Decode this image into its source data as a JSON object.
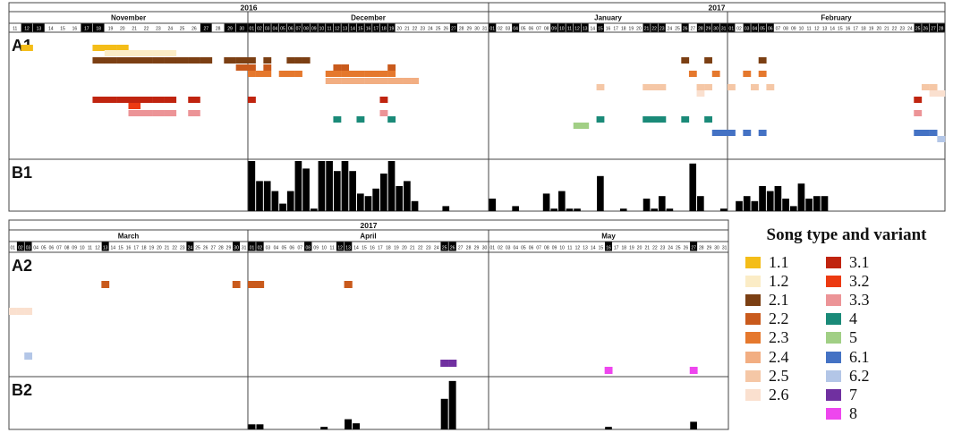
{
  "colors": {
    "1.1": "#f4bd18",
    "1.2": "#fbecc6",
    "2.1": "#7b3f13",
    "2.2": "#c95a1c",
    "2.3": "#e5782d",
    "2.4": "#f2ae82",
    "2.5": "#f5c7a6",
    "2.6": "#fae0cf",
    "3.1": "#c0240f",
    "3.2": "#ec3a12",
    "3.3": "#ec9497",
    "4": "#1a8a78",
    "5": "#a1cf85",
    "6.1": "#4472c4",
    "6.2": "#b3c6e7",
    "7": "#7030a0",
    "8": "#ee46ee"
  },
  "legend": {
    "title": "Song type and variant",
    "items": [
      "1.1",
      "1.2",
      "2.1",
      "2.2",
      "2.3",
      "2.4",
      "2.5",
      "2.6",
      "3.1",
      "3.2",
      "3.3",
      "4",
      "5",
      "6.1",
      "6.2",
      "7",
      "8"
    ]
  },
  "chart_data": [
    {
      "type": "heatmap",
      "panel_label": "A1",
      "years": [
        {
          "label": "2016"
        },
        {
          "label": "2017"
        }
      ],
      "months": [
        {
          "name": "November",
          "days": 30,
          "first_day": 11,
          "highlighted_days": [
            12,
            13,
            17,
            18,
            27,
            29,
            30
          ]
        },
        {
          "name": "December",
          "days": 31,
          "highlighted_days": [
            1,
            2,
            3,
            4,
            5,
            6,
            7,
            8,
            9,
            10,
            11,
            12,
            13,
            14,
            15,
            16,
            17,
            18,
            19,
            27
          ]
        },
        {
          "name": "January",
          "days": 31,
          "highlighted_days": [
            1,
            4,
            9,
            10,
            11,
            12,
            13,
            15,
            21,
            22,
            23,
            26,
            28,
            29,
            30,
            31
          ]
        },
        {
          "name": "February",
          "days": 28,
          "highlighted_days": [
            1,
            3,
            4,
            5,
            6,
            25,
            26,
            27,
            28
          ]
        }
      ],
      "detections": [
        {
          "type": "1.1",
          "days": [
            "Nov 12"
          ]
        },
        {
          "type": "1.1",
          "days": [
            "Nov 18",
            "Nov 19",
            "Nov 20"
          ]
        },
        {
          "type": "1.2",
          "days": [
            "Nov 19",
            "Nov 20",
            "Nov 21",
            "Nov 22",
            "Nov 23",
            "Nov 24"
          ]
        },
        {
          "type": "2.1",
          "days": [
            "Nov 18",
            "Nov 19",
            "Nov 20",
            "Nov 21",
            "Nov 22",
            "Nov 23",
            "Nov 24",
            "Nov 25",
            "Nov 26",
            "Nov 27",
            "Nov 29",
            "Nov 30",
            "Dec 01",
            "Dec 03",
            "Dec 06",
            "Dec 07",
            "Dec 08",
            "Jan 26",
            "Jan 29",
            "Feb 05"
          ]
        },
        {
          "type": "2.2",
          "days": [
            "Nov 30",
            "Dec 01",
            "Dec 03",
            "Dec 12",
            "Dec 13",
            "Dec 19"
          ]
        },
        {
          "type": "2.3",
          "days": [
            "Dec 01",
            "Dec 02",
            "Dec 03",
            "Dec 05",
            "Dec 06",
            "Dec 07",
            "Dec 11",
            "Dec 12",
            "Dec 13",
            "Dec 14",
            "Dec 15",
            "Dec 16",
            "Dec 17",
            "Dec 18",
            "Dec 19",
            "Jan 27",
            "Jan 30",
            "Feb 03",
            "Feb 05"
          ]
        },
        {
          "type": "2.4",
          "days": [
            "Dec 11",
            "Dec 12",
            "Dec 13",
            "Dec 14",
            "Dec 15",
            "Dec 16",
            "Dec 17",
            "Dec 18",
            "Dec 19",
            "Dec 20",
            "Dec 21",
            "Dec 22"
          ]
        },
        {
          "type": "2.5",
          "days": [
            "Jan 15",
            "Jan 21",
            "Jan 22",
            "Jan 23",
            "Jan 28",
            "Jan 29",
            "Feb 01",
            "Feb 04",
            "Feb 06",
            "Feb 26",
            "Feb 27"
          ]
        },
        {
          "type": "2.6",
          "days": [
            "Jan 28",
            "Feb 27",
            "Feb 28"
          ]
        },
        {
          "type": "3.1",
          "days": [
            "Nov 18",
            "Nov 19",
            "Nov 20",
            "Nov 21",
            "Nov 22",
            "Nov 23",
            "Nov 24",
            "Nov 26",
            "Dec 01",
            "Dec 18",
            "Feb 25"
          ]
        },
        {
          "type": "3.2",
          "days": [
            "Nov 21"
          ]
        },
        {
          "type": "3.3",
          "days": [
            "Nov 21",
            "Nov 22",
            "Nov 23",
            "Nov 24",
            "Nov 26",
            "Dec 18",
            "Feb 25"
          ]
        },
        {
          "type": "4",
          "days": [
            "Dec 12",
            "Dec 15",
            "Dec 19",
            "Jan 15",
            "Jan 21",
            "Jan 22",
            "Jan 23",
            "Jan 26",
            "Jan 29"
          ]
        },
        {
          "type": "5",
          "days": [
            "Jan 12",
            "Jan 13"
          ]
        },
        {
          "type": "6.1",
          "days": [
            "Jan 30",
            "Jan 31",
            "Feb 01",
            "Feb 03",
            "Feb 05",
            "Feb 25",
            "Feb 26",
            "Feb 27"
          ]
        },
        {
          "type": "6.2",
          "days": [
            "Feb 28"
          ]
        }
      ]
    },
    {
      "type": "bar",
      "panel_label": "B1",
      "start_day": "Dec 01",
      "values": [
        1.0,
        0.6,
        0.6,
        0.4,
        0.15,
        0.4,
        1.0,
        0.85,
        0.05,
        1.0,
        1.0,
        0.8,
        1.0,
        0.8,
        0.35,
        0.3,
        0.45,
        0.75,
        1.0,
        0.5,
        0.6,
        0.2,
        0,
        0,
        0,
        0.1,
        0,
        0,
        0,
        0,
        0,
        0.25,
        0,
        0,
        0.1,
        0,
        0,
        0,
        0.35,
        0.05,
        0.4,
        0.05,
        0.05,
        0,
        0,
        0.7,
        0,
        0,
        0.05,
        0,
        0,
        0.25,
        0.05,
        0.3,
        0.05,
        0,
        0,
        0.95,
        0.3,
        0,
        0,
        0.05,
        0,
        0.2,
        0.3,
        0.2,
        0.5,
        0.4,
        0.5,
        0.25,
        0.1,
        0.55,
        0.25,
        0.3,
        0.3,
        0,
        0,
        0,
        0,
        0,
        0,
        0,
        0,
        0,
        0,
        0,
        0,
        0,
        0,
        0,
        0.45,
        0.45,
        0.3,
        0.15
      ]
    },
    {
      "type": "heatmap",
      "panel_label": "A2",
      "year": "2017",
      "months": [
        {
          "name": "March",
          "days": 31,
          "highlighted_days": [
            2,
            3,
            13,
            24,
            30
          ]
        },
        {
          "name": "April",
          "days": 30,
          "highlighted_days": [
            1,
            2,
            8,
            12,
            13,
            25,
            26
          ]
        },
        {
          "name": "May",
          "days": 31,
          "highlighted_days": [
            16,
            27
          ]
        }
      ],
      "detections": [
        {
          "type": "2.6",
          "days": [
            "Mar 01",
            "Mar 02",
            "Mar 03"
          ]
        },
        {
          "type": "2.2",
          "days": [
            "Mar 13",
            "Mar 30",
            "Apr 01",
            "Apr 02",
            "Apr 13"
          ]
        },
        {
          "type": "6.2",
          "days": [
            "Mar 03"
          ]
        },
        {
          "type": "7",
          "days": [
            "Apr 25",
            "Apr 26"
          ]
        },
        {
          "type": "8",
          "days": [
            "May 16",
            "May 27"
          ]
        }
      ]
    },
    {
      "type": "bar",
      "panel_label": "B2",
      "start_day": "Mar 01",
      "values": [
        0,
        0,
        0,
        0,
        0,
        0,
        0,
        0,
        0,
        0,
        0,
        0,
        0,
        0,
        0,
        0,
        0,
        0,
        0,
        0,
        0,
        0,
        0,
        0,
        0,
        0,
        0,
        0,
        0,
        0,
        0,
        0.1,
        0.1,
        0,
        0,
        0,
        0,
        0,
        0,
        0,
        0.05,
        0,
        0,
        0.2,
        0.12,
        0,
        0,
        0,
        0,
        0,
        0,
        0,
        0,
        0,
        0,
        0.6,
        0.95,
        0,
        0,
        0,
        0,
        0,
        0,
        0,
        0,
        0,
        0,
        0,
        0,
        0,
        0,
        0,
        0,
        0,
        0,
        0,
        0.05,
        0,
        0,
        0,
        0,
        0,
        0,
        0,
        0,
        0,
        0,
        0.15,
        0,
        0,
        0,
        0
      ]
    }
  ]
}
